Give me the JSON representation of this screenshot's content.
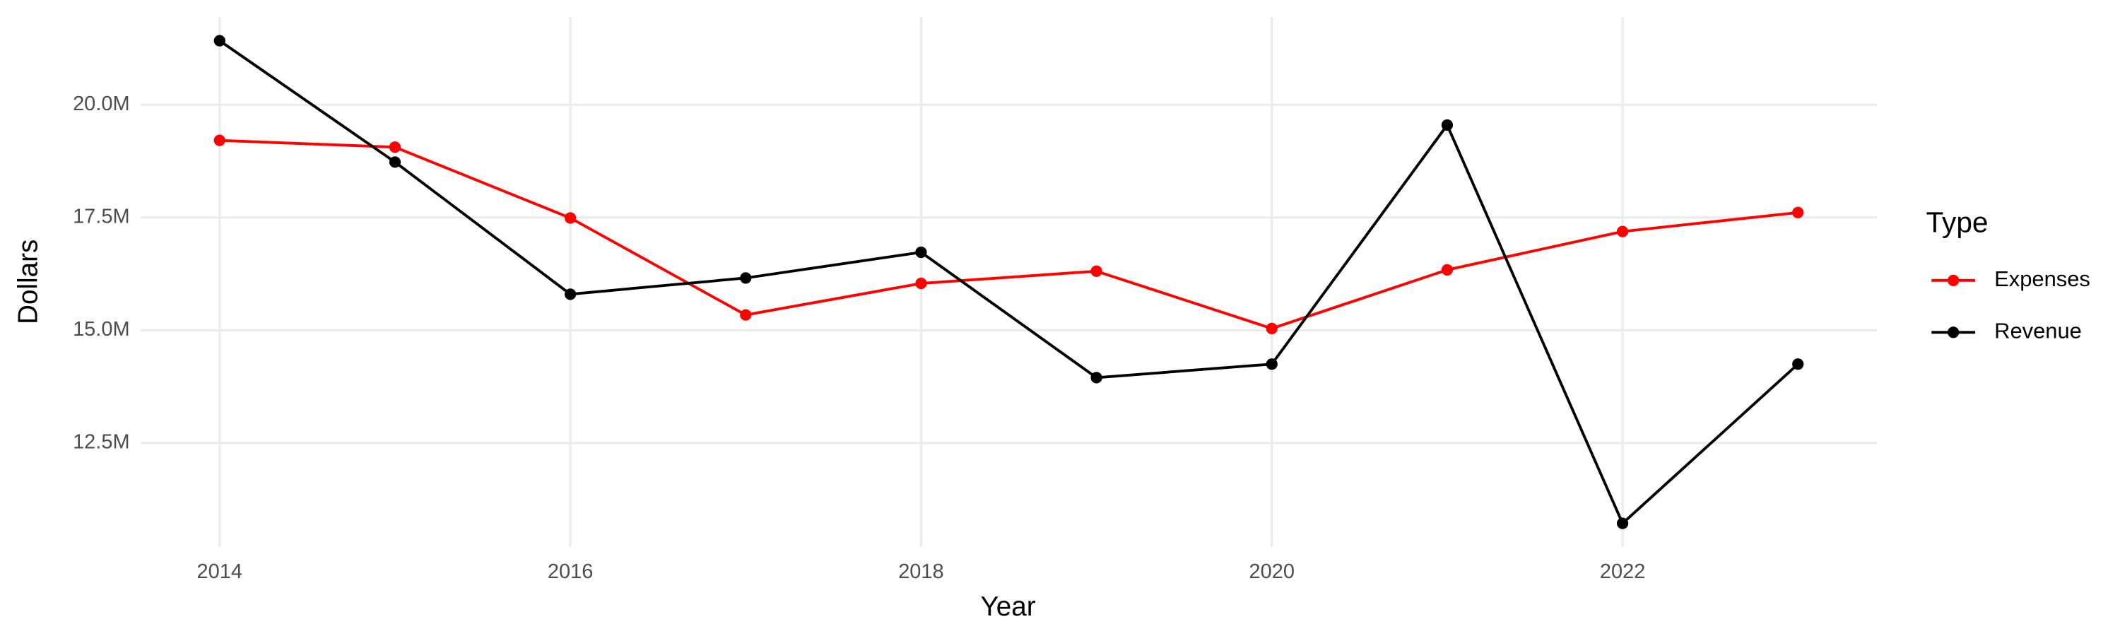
{
  "chart_data": {
    "type": "line",
    "x_label": "Year",
    "y_label": "Dollars",
    "legend_title": "Type",
    "x": [
      2014,
      2015,
      2016,
      2017,
      2018,
      2019,
      2020,
      2021,
      2022,
      2023
    ],
    "series": [
      {
        "name": "Expenses",
        "color": "#ff0000",
        "values": [
          19210000,
          19060000,
          17490000,
          15340000,
          16040000,
          16310000,
          15040000,
          16340000,
          17190000,
          17610000
        ]
      },
      {
        "name": "Revenue",
        "color": "#000000",
        "values": [
          21420000,
          18730000,
          15800000,
          16160000,
          16730000,
          13950000,
          14250000,
          19550000,
          10720000,
          14250000
        ]
      }
    ],
    "xlim": [
      2013.55,
      2023.45
    ],
    "xticks": [
      2014,
      2016,
      2018,
      2020,
      2022
    ],
    "ylim": [
      10200000,
      21950000
    ],
    "yticks": [
      {
        "value": 12500000,
        "label": "12.5M"
      },
      {
        "value": 15000000,
        "label": "15.0M"
      },
      {
        "value": 17500000,
        "label": "17.5M"
      },
      {
        "value": 20000000,
        "label": "20.0M"
      }
    ],
    "grid": true,
    "legend_position": "right"
  }
}
